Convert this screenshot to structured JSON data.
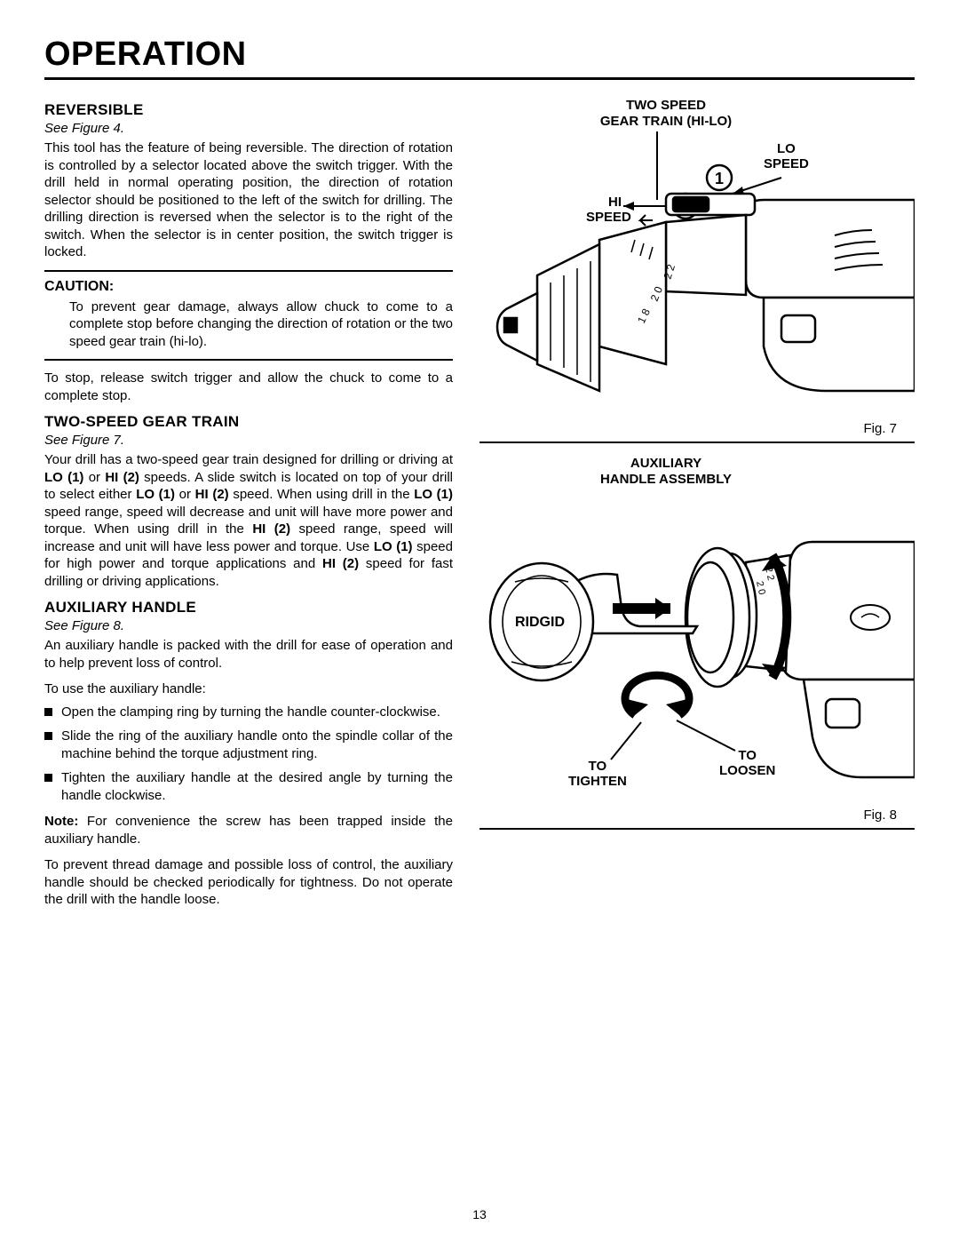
{
  "page": {
    "title": "OPERATION",
    "number": "13"
  },
  "sections": {
    "reversible": {
      "heading": "REVERSIBLE",
      "see": "See Figure 4.",
      "body": "This tool has the feature of being reversible. The direction of rotation is controlled by a selector located above the switch trigger. With the drill held in normal operating position, the direction of rotation selector should be positioned to the left of the switch for drilling. The drilling direction is reversed when the selector is to the right of the switch. When the selector is in center position, the switch trigger is locked."
    },
    "caution": {
      "heading": "CAUTION:",
      "body": "To prevent gear damage, always allow chuck to come to a complete stop before changing the direction of rotation or the two speed gear train (hi-lo)."
    },
    "stop": "To stop, release switch trigger and allow the chuck to come to a complete stop.",
    "twospeed": {
      "heading": "TWO-SPEED GEAR TRAIN",
      "see": "See Figure 7.",
      "body_html": "Your drill has a two-speed gear train designed for drilling or driving at <b>LO (1)</b> or <b>HI (2)</b> speeds. A slide switch is located on top of your drill to select either <b>LO (1)</b> or <b>HI (2)</b> speed. When using drill in the <b>LO (1)</b> speed range, speed will decrease and unit will have more power and torque. When using drill in the <b>HI (2)</b> speed range, speed will increase and unit will have less power and torque. Use <b>LO (1)</b> speed for high power and torque applications and <b>HI (2)</b> speed for fast drilling or driving applications."
    },
    "aux": {
      "heading": "AUXILIARY HANDLE",
      "see": "See Figure 8.",
      "intro": "An auxiliary handle is packed with the drill for ease of operation and to help prevent loss of control.",
      "lead": "To use the auxiliary handle:",
      "items": [
        "Open the clamping ring by turning the handle counter-clockwise.",
        "Slide the ring of the auxiliary handle onto the spindle collar of the machine behind the torque adjustment ring.",
        "Tighten the auxiliary handle at the desired angle by   turning the handle clockwise."
      ],
      "note_html": "<b>Note:</b> For convenience the screw has been trapped inside the auxiliary handle.",
      "warn": "To prevent thread damage and possible loss of control, the auxiliary handle should be checked periodically for tightness. Do not operate the drill with the handle loose."
    }
  },
  "figures": {
    "fig7": {
      "title_line1": "TWO SPEED",
      "title_line2": "GEAR TRAIN (HI-LO)",
      "lo_label": "LO\nSPEED",
      "hi_label": "HI\nSPEED",
      "num1": "1",
      "num2": "2",
      "caption": "Fig. 7",
      "colors": {
        "stroke": "#000000",
        "fill": "#ffffff"
      }
    },
    "fig8": {
      "title_line1": "AUXILIARY",
      "title_line2": "HANDLE ASSEMBLY",
      "tighten": "TO\nTIGHTEN",
      "loosen": "TO\nLOOSEN",
      "brand": "RIDGID",
      "caption": "Fig. 8",
      "colors": {
        "stroke": "#000000",
        "fill": "#ffffff"
      }
    }
  }
}
